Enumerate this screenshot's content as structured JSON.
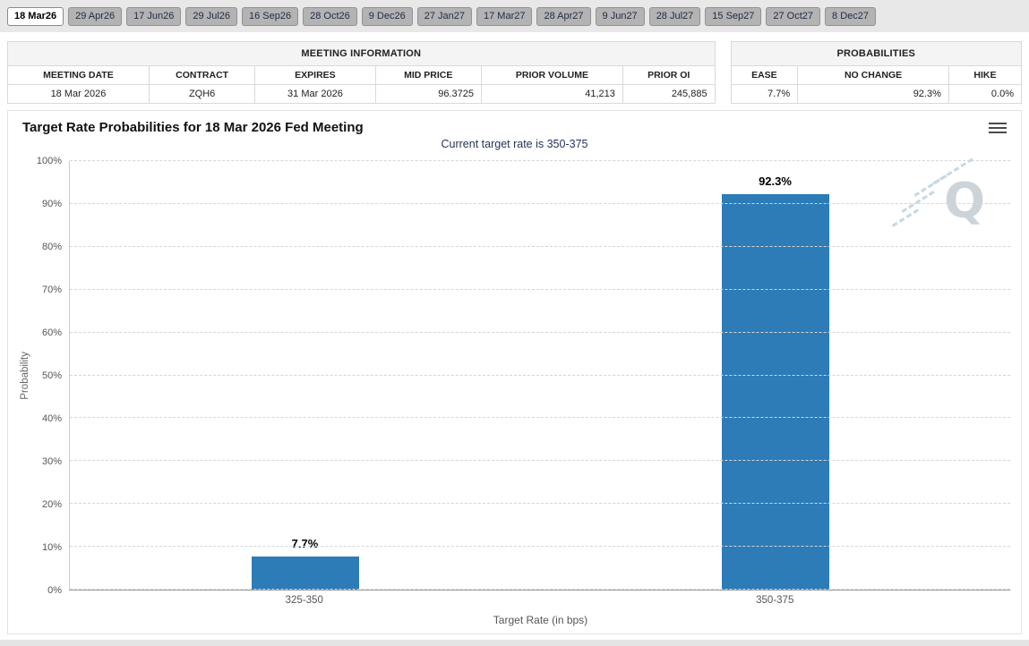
{
  "tabs": [
    {
      "label": "18 Mar26",
      "selected": true
    },
    {
      "label": "29 Apr26",
      "selected": false
    },
    {
      "label": "17 Jun26",
      "selected": false
    },
    {
      "label": "29 Jul26",
      "selected": false
    },
    {
      "label": "16 Sep26",
      "selected": false
    },
    {
      "label": "28 Oct26",
      "selected": false
    },
    {
      "label": "9 Dec26",
      "selected": false
    },
    {
      "label": "27 Jan27",
      "selected": false
    },
    {
      "label": "17 Mar27",
      "selected": false
    },
    {
      "label": "28 Apr27",
      "selected": false
    },
    {
      "label": "9 Jun27",
      "selected": false
    },
    {
      "label": "28 Jul27",
      "selected": false
    },
    {
      "label": "15 Sep27",
      "selected": false
    },
    {
      "label": "27 Oct27",
      "selected": false
    },
    {
      "label": "8 Dec27",
      "selected": false
    }
  ],
  "meeting_info": {
    "title": "MEETING INFORMATION",
    "columns": [
      "MEETING DATE",
      "CONTRACT",
      "EXPIRES",
      "MID PRICE",
      "PRIOR VOLUME",
      "PRIOR OI"
    ],
    "row": {
      "meeting_date": "18 Mar 2026",
      "contract": "ZQH6",
      "expires": "31 Mar 2026",
      "mid_price": "96.3725",
      "prior_volume": "41,213",
      "prior_oi": "245,885"
    }
  },
  "probabilities": {
    "title": "PROBABILITIES",
    "columns": [
      "EASE",
      "NO CHANGE",
      "HIKE"
    ],
    "row": {
      "ease": "7.7%",
      "no_change": "92.3%",
      "hike": "0.0%"
    }
  },
  "chart_data": {
    "type": "bar",
    "title": "Target Rate Probabilities for 18 Mar 2026 Fed Meeting",
    "subtitle": "Current target rate is 350-375",
    "categories": [
      "325-350",
      "350-375"
    ],
    "values": [
      7.7,
      92.3
    ],
    "labels": [
      "7.7%",
      "92.3%"
    ],
    "xlabel": "Target Rate (in bps)",
    "ylabel": "Probability",
    "ylim": [
      0,
      100
    ],
    "yticks": [
      0,
      10,
      20,
      30,
      40,
      50,
      60,
      70,
      80,
      90,
      100
    ],
    "grid": "dashed horizontal gridlines",
    "legend": "none",
    "bar_color": "#2d7bb7",
    "watermark": "Q"
  },
  "colors": {
    "bar_blue": "#2d7bb7",
    "subtitle_navy": "#26335c",
    "tab_gray": "#b3b3b3",
    "strip_gray": "#e8e8e8"
  }
}
